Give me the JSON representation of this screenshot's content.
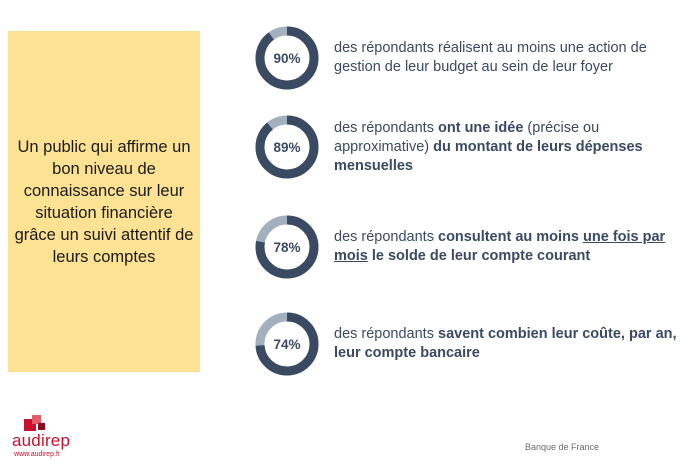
{
  "summary": {
    "text": "Un public qui affirme un bon niveau de connaissance sur leur situation financière grâce un suivi attentif de leurs comptes"
  },
  "stats": [
    {
      "percent": 90,
      "label": "90%",
      "segments": [
        {
          "text": "des répondants réalisent au moins une action de gestion de leur budget au sein de leur foyer",
          "style": "normal"
        }
      ]
    },
    {
      "percent": 89,
      "label": "89%",
      "segments": [
        {
          "text": "des répondants ",
          "style": "normal"
        },
        {
          "text": "ont une idée",
          "style": "bold"
        },
        {
          "text": " (précise ou approximative) ",
          "style": "normal"
        },
        {
          "text": "du montant de leurs dépenses mensuelles",
          "style": "bold"
        }
      ]
    },
    {
      "percent": 78,
      "label": "78%",
      "segments": [
        {
          "text": "des répondants ",
          "style": "normal"
        },
        {
          "text": "consultent au moins ",
          "style": "bold"
        },
        {
          "text": "une fois par mois",
          "style": "bold-underline"
        },
        {
          "text": " le solde de leur compte courant",
          "style": "bold"
        }
      ]
    },
    {
      "percent": 74,
      "label": "74%",
      "segments": [
        {
          "text": "des répondants ",
          "style": "normal"
        },
        {
          "text": "savent combien leur coûte, par an, leur compte bancaire",
          "style": "bold"
        }
      ]
    }
  ],
  "colors": {
    "accent": "#3a4a63",
    "track": "#a3b0c0",
    "summary_bg": "#fde294",
    "brand": "#c8102e"
  },
  "footer": {
    "logo_name": "audirep",
    "logo_url": "www.audirep.fr",
    "source": "Banque de France"
  }
}
